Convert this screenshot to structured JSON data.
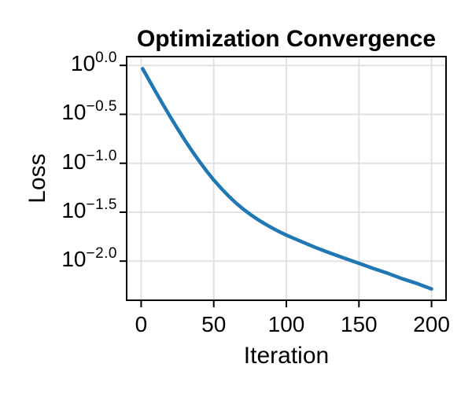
{
  "figure": {
    "background": "#ffffff"
  },
  "chart_data": {
    "type": "line",
    "title": "Optimization Convergence",
    "xlabel": "Iteration",
    "ylabel": "Loss",
    "y_scale": "log10",
    "grid": true,
    "legend": "none",
    "line_color": "#1f77b4",
    "grid_color": "#e2e2e2",
    "axis_color": "#000000",
    "text_color": "#000000",
    "xlim": [
      -10,
      210
    ],
    "ylim_log10": [
      -2.4,
      0.09
    ],
    "x_ticks": [
      0,
      50,
      100,
      150,
      200
    ],
    "y_ticks": [
      {
        "base": "10",
        "exponent": "0.0",
        "log10": 0.0
      },
      {
        "base": "10",
        "exponent": "−0.5",
        "log10": -0.5
      },
      {
        "base": "10",
        "exponent": "−1.0",
        "log10": -1.0
      },
      {
        "base": "10",
        "exponent": "−1.5",
        "log10": -1.5
      },
      {
        "base": "10",
        "exponent": "−2.0",
        "log10": -2.0
      }
    ],
    "series": [
      {
        "name": "loss",
        "x": [
          1,
          5,
          10,
          15,
          20,
          25,
          30,
          35,
          40,
          45,
          50,
          55,
          60,
          65,
          70,
          75,
          80,
          85,
          90,
          95,
          100,
          110,
          120,
          130,
          140,
          150,
          160,
          170,
          180,
          190,
          200
        ],
        "y": [
          0.926,
          0.726,
          0.537,
          0.4,
          0.299,
          0.226,
          0.173,
          0.134,
          0.105,
          0.0835,
          0.0675,
          0.0556,
          0.0466,
          0.0396,
          0.0343,
          0.0301,
          0.0268,
          0.0241,
          0.0219,
          0.02,
          0.0184,
          0.0159,
          0.0138,
          0.0121,
          0.0107,
          0.0095,
          0.0084,
          0.0075,
          0.0066,
          0.0059,
          0.0052
        ]
      }
    ]
  }
}
